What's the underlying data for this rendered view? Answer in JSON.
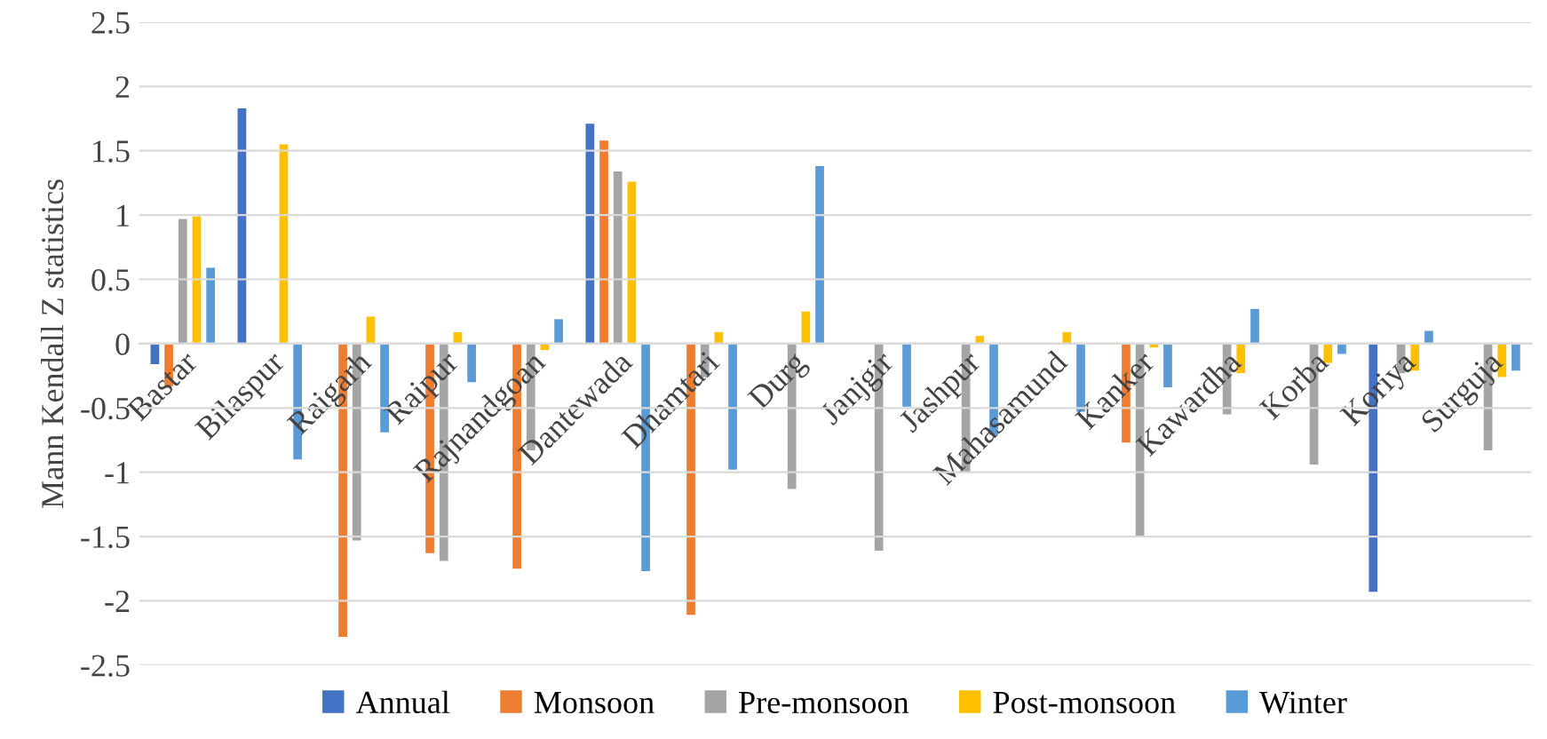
{
  "chart_data": {
    "type": "bar",
    "ylabel": "Mann Kendall Z statistics",
    "categories": [
      "Bastar",
      "Bilaspur",
      "Raigarh",
      "Raipur",
      "Rajnandgoan",
      "Dantewada",
      "Dhamtari",
      "Durg",
      "Janjgir",
      "Jashpur",
      "Mahasamund",
      "Kanker",
      "Kawardha",
      "Korba",
      "Koriya",
      "Surguja"
    ],
    "series": [
      {
        "name": "Annual",
        "color": "#4472c4",
        "values": [
          -0.16,
          1.83,
          0,
          0,
          0,
          1.71,
          0,
          0,
          0,
          0,
          0,
          0,
          0,
          0,
          -1.93,
          0
        ]
      },
      {
        "name": "Monsoon",
        "color": "#ed7d31",
        "values": [
          -0.33,
          0,
          -2.28,
          -1.63,
          -1.75,
          1.58,
          -2.11,
          0,
          0,
          0,
          0,
          -0.77,
          0,
          0,
          0,
          0
        ]
      },
      {
        "name": "Pre-monsoon",
        "color": "#a5a5a5",
        "values": [
          0.97,
          0,
          -1.53,
          -1.69,
          -0.83,
          1.34,
          -0.26,
          -1.13,
          -1.61,
          -1.0,
          0,
          -1.5,
          -0.55,
          -0.94,
          -0.23,
          -0.83
        ]
      },
      {
        "name": "Post-monsoon",
        "color": "#ffc000",
        "values": [
          0.99,
          1.55,
          0.21,
          0.09,
          -0.05,
          1.26,
          0.09,
          0.25,
          0,
          0.06,
          0.09,
          -0.03,
          -0.23,
          -0.15,
          -0.21,
          -0.26
        ]
      },
      {
        "name": "Winter",
        "color": "#5b9bd5",
        "values": [
          0.59,
          -0.9,
          -0.69,
          -0.3,
          0.19,
          -1.77,
          -0.98,
          1.38,
          -0.49,
          -0.71,
          -0.53,
          -0.34,
          0.27,
          -0.08,
          0.1,
          -0.21
        ]
      }
    ],
    "ylim": [
      -2.5,
      2.5
    ],
    "yticks": [
      2.5,
      2,
      1.5,
      1,
      0.5,
      0,
      -0.5,
      -1,
      -1.5,
      -2,
      -2.5
    ],
    "grid": "y",
    "legend": "bottom"
  }
}
